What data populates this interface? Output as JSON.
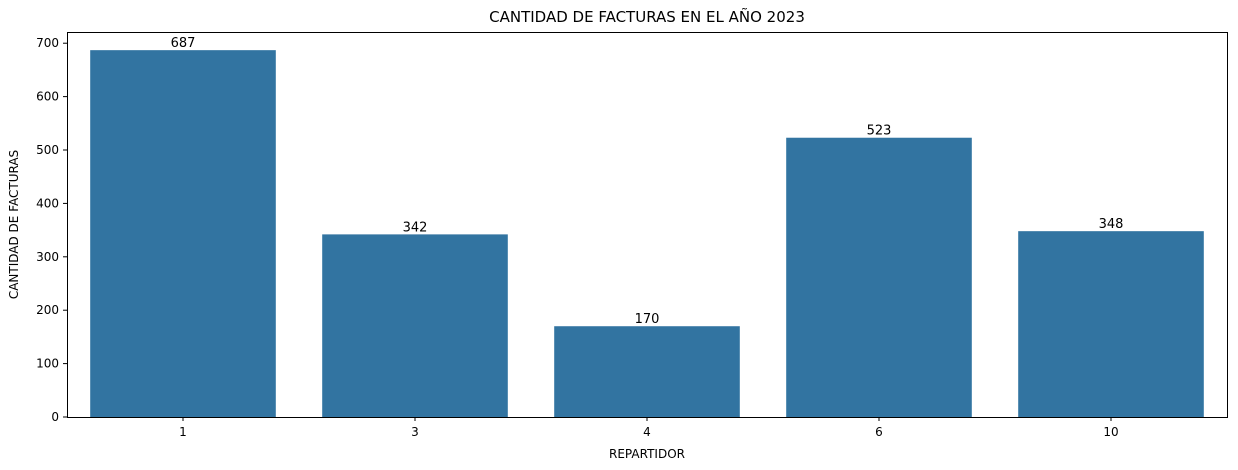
{
  "chart_data": {
    "type": "bar",
    "title": "CANTIDAD DE FACTURAS EN EL AÑO 2023",
    "xlabel": "REPARTIDOR",
    "ylabel": "CANTIDAD DE FACTURAS",
    "categories": [
      "1",
      "3",
      "4",
      "6",
      "10"
    ],
    "values": [
      687,
      342,
      170,
      523,
      348
    ],
    "value_labels": [
      "687",
      "342",
      "170",
      "523",
      "348"
    ],
    "ylim": [
      0,
      721
    ],
    "yticks": [
      0,
      100,
      200,
      300,
      400,
      500,
      600,
      700
    ],
    "ytick_labels": [
      "0",
      "100",
      "200",
      "300",
      "400",
      "500",
      "600",
      "700"
    ],
    "bar_color": "#3274a1",
    "grid": false,
    "legend": "none"
  }
}
